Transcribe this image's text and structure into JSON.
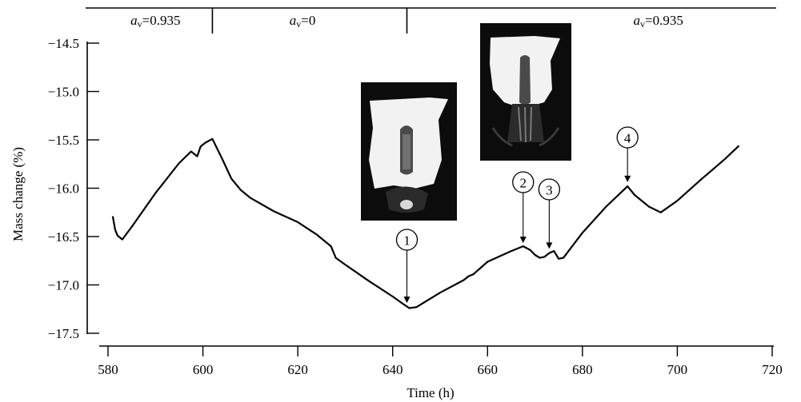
{
  "chart_data": {
    "type": "line",
    "title": "",
    "xlabel": "Time (h)",
    "ylabel": "Mass change (%)",
    "xlim": [
      580,
      720
    ],
    "ylim": [
      -17.5,
      -14.5
    ],
    "x_ticks": [
      580,
      600,
      620,
      640,
      660,
      680,
      700,
      720
    ],
    "y_ticks": [
      -14.5,
      -15.0,
      -15.5,
      -16.0,
      -16.5,
      -17.0,
      -17.5
    ],
    "x_tick_labels": [
      "580",
      "600",
      "620",
      "640",
      "660",
      "680",
      "700",
      "720"
    ],
    "y_tick_labels": [
      "−14.5",
      "−15.0",
      "−15.5",
      "−16.0",
      "−16.5",
      "−17.0",
      "−17.5"
    ],
    "grid": false,
    "series": [
      {
        "x": [
          581.0,
          581.5,
          582.0,
          583.0,
          585,
          590,
          595,
          597.5,
          598.3,
          598.8,
          599.5,
          600.5,
          602.0,
          604,
          606,
          608,
          610,
          615,
          620,
          624,
          627,
          628,
          630,
          635,
          640,
          642,
          643.5,
          645,
          650,
          655,
          656,
          657,
          660,
          665,
          667.5,
          669,
          670,
          671,
          672,
          673,
          674,
          675,
          676,
          680,
          685,
          689.5,
          691,
          694,
          696.5,
          700,
          705,
          710,
          713
        ],
        "y": [
          -16.29,
          -16.43,
          -16.49,
          -16.53,
          -16.4,
          -16.05,
          -15.74,
          -15.62,
          -15.65,
          -15.67,
          -15.57,
          -15.53,
          -15.49,
          -15.69,
          -15.9,
          -16.02,
          -16.1,
          -16.24,
          -16.35,
          -16.48,
          -16.6,
          -16.72,
          -16.79,
          -16.96,
          -17.12,
          -17.19,
          -17.24,
          -17.23,
          -17.08,
          -16.95,
          -16.91,
          -16.89,
          -16.76,
          -16.65,
          -16.6,
          -16.64,
          -16.69,
          -16.72,
          -16.71,
          -16.67,
          -16.65,
          -16.73,
          -16.72,
          -16.46,
          -16.19,
          -15.98,
          -16.07,
          -16.19,
          -16.25,
          -16.13,
          -15.91,
          -15.7,
          -15.56
        ]
      }
    ],
    "phases": [
      {
        "name": "a",
        "sub": "v",
        "value": "=0.935",
        "x": 590
      },
      {
        "name": "a",
        "sub": "v",
        "value": "=0",
        "x": 621
      },
      {
        "name": "a",
        "sub": "v",
        "value": "=0.935",
        "x": 696
      }
    ],
    "phase_boundaries": [
      602,
      643
    ],
    "annotations": [
      {
        "label": "1",
        "x": 643,
        "y": -17.22
      },
      {
        "label": "2",
        "x": 667.5,
        "y": -16.6
      },
      {
        "label": "3",
        "x": 673,
        "y": -16.66
      },
      {
        "label": "4",
        "x": 689.5,
        "y": -15.97
      }
    ],
    "inset_images": [
      {
        "name": "specimen-photo-1",
        "description_icon": "photo-icon"
      },
      {
        "name": "specimen-photo-2",
        "description_icon": "photo-icon"
      }
    ],
    "colors": {
      "line": "#000000",
      "background": "#ffffff",
      "photo_bg": "#0c0c0c"
    }
  }
}
